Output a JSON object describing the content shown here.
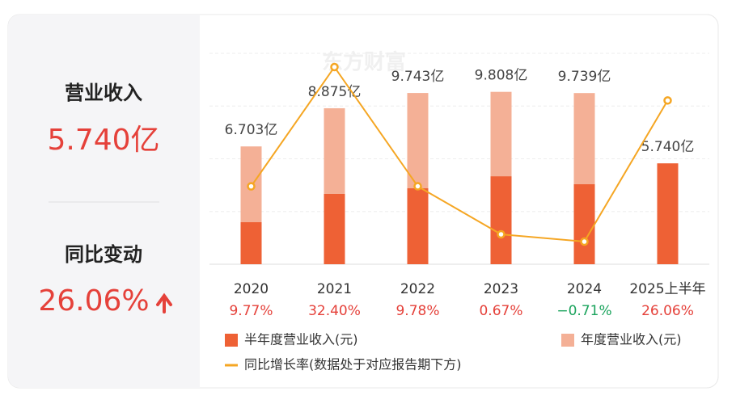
{
  "summary": {
    "revenue_label": "营业收入",
    "revenue_value": "5.740亿",
    "change_label": "同比变动",
    "change_value": "26.06%"
  },
  "chart_data": {
    "type": "bar",
    "watermark": "东方财富",
    "categories": [
      "2020",
      "2021",
      "2022",
      "2023",
      "2024",
      "2025上半年"
    ],
    "ylim": [
      0,
      12
    ],
    "yticks": [
      0,
      3,
      6,
      9,
      12
    ],
    "grid": true,
    "y2lim": [
      -5,
      35
    ],
    "series": [
      {
        "name": "半年度营业收入(元)",
        "type": "bar",
        "color": "#ee6135",
        "values": [
          2.39,
          4.0,
          4.32,
          5.0,
          4.55,
          5.74
        ],
        "value_labels": [
          null,
          null,
          null,
          null,
          null,
          "5.740亿"
        ]
      },
      {
        "name": "年度营业收入(元)",
        "type": "bar",
        "color": "#f4b096",
        "values": [
          6.703,
          8.875,
          9.743,
          9.808,
          9.739,
          null
        ],
        "value_labels": [
          "6.703亿",
          "8.875亿",
          "9.743亿",
          "9.808亿",
          "9.739亿",
          null
        ]
      },
      {
        "name": "同比增长率(数据处于对应报告期下方)",
        "type": "line",
        "axis": "y2",
        "color": "#f5a623",
        "values": [
          9.77,
          32.4,
          9.78,
          0.67,
          -0.71,
          26.06
        ],
        "value_labels": [
          "9.77%",
          "32.40%",
          "9.78%",
          "0.67%",
          "−0.71%",
          "26.06%"
        ]
      }
    ],
    "positive_color": "#e5413a",
    "negative_color": "#1aa35c"
  }
}
